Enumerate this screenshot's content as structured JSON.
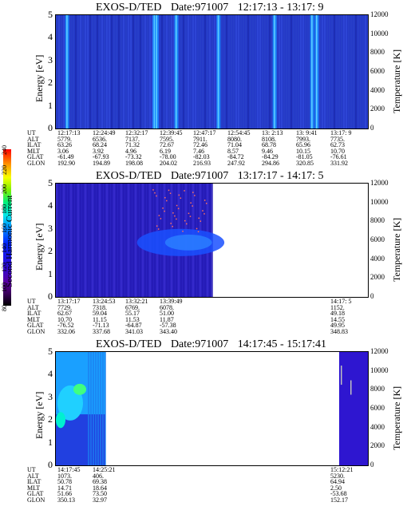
{
  "chart_data": [
    {
      "type": "heatmap",
      "title": {
        "instrument": "EXOS-D/TED",
        "date": "Date:971007",
        "range": "12:17:13 - 13:17: 9"
      },
      "ylabel": "Energy [eV]",
      "y2label": "Temperature [K]",
      "ylim": [
        0,
        5
      ],
      "y2lim": [
        0,
        12000
      ],
      "yticks": [
        "0",
        "1",
        "2",
        "3",
        "4",
        "5"
      ],
      "y2ticks": [
        "0",
        "2000",
        "4000",
        "6000",
        "8000",
        "10000",
        "12000"
      ],
      "background_color": "#2438c8",
      "band_color": "#1a8cff",
      "bright_bands": [
        0.035,
        0.315,
        0.322,
        0.385,
        0.52,
        0.7,
        0.82,
        0.835
      ],
      "orbit_labels": [
        "UT",
        "ALT",
        "ILAT",
        "MLT",
        "GLAT",
        "GLON"
      ],
      "orbit_columns": [
        [
          "12:17:13",
          "5779.",
          "63.26",
          "3.06",
          "-61.49",
          "192.90"
        ],
        [
          "12:24:49",
          "6536.",
          "68.24",
          "3.92",
          "-67.93",
          "194.89"
        ],
        [
          "12:32:17",
          "7137.",
          "71.32",
          "4.96",
          "-73.32",
          "198.08"
        ],
        [
          "12:39:45",
          "7595.",
          "72.67",
          "6.19",
          "-78.00",
          "204.02"
        ],
        [
          "12:47:17",
          "7911.",
          "72.46",
          "7.46",
          "-82.03",
          "216.93"
        ],
        [
          "12:54:45",
          "8080.",
          "71.04",
          "8.57",
          "-84.72",
          "247.92"
        ],
        [
          "13: 2:13",
          "8108.",
          "68.78",
          "9.46",
          "-84.29",
          "294.86"
        ],
        [
          "13: 9:41",
          "7993.",
          "65.96",
          "10.15",
          "-81.05",
          "320.85"
        ],
        [
          "13:17: 9",
          "7735.",
          "62.73",
          "10.70",
          "-76.61",
          "331.92"
        ]
      ]
    },
    {
      "type": "heatmap",
      "title": {
        "instrument": "EXOS-D/TED",
        "date": "Date:971007",
        "range": "13:17:17 - 14:17: 5"
      },
      "ylabel": "Energy [eV]",
      "y2label": "Temperature [K]",
      "ylim": [
        0,
        5
      ],
      "y2lim": [
        0,
        12000
      ],
      "yticks": [
        "0",
        "1",
        "2",
        "3",
        "4",
        "5"
      ],
      "y2ticks": [
        "0",
        "2000",
        "4000",
        "6000",
        "8000",
        "10000",
        "12000"
      ],
      "data_end_fraction": 0.5,
      "orbit_labels": [
        "UT",
        "ALT",
        "ILAT",
        "MLT",
        "GLAT",
        "GLON"
      ],
      "orbit_columns": [
        [
          "13:17:17",
          "7729.",
          "62.67",
          "10.70",
          "-76.52",
          "332.06"
        ],
        [
          "13:24:53",
          "7318.",
          "59.04",
          "11.15",
          "-71.13",
          "337.68"
        ],
        [
          "13:32:21",
          "6769.",
          "55.17",
          "11.53",
          "-64.87",
          "341.03"
        ],
        [
          "13:39:49",
          "6078.",
          "51.00",
          "11.87",
          "-57.38",
          "343.40"
        ],
        [
          "14:17: 5",
          "1152.",
          "49.18",
          "14.55",
          "49.95",
          "348.83"
        ]
      ],
      "colorbar": {
        "label": "Second Harmonic Current",
        "ticks": [
          "80",
          "100",
          "120",
          "140",
          "160",
          "180",
          "200",
          "220",
          "240"
        ]
      }
    },
    {
      "type": "heatmap",
      "title": {
        "instrument": "EXOS-D/TED",
        "date": "Date:971007",
        "range": "14:17:45 - 15:17:41"
      },
      "ylabel": "Energy [eV]",
      "y2label": "Temperature [K]",
      "ylim": [
        0,
        5
      ],
      "y2lim": [
        0,
        12000
      ],
      "yticks": [
        "0",
        "1",
        "2",
        "3",
        "4",
        "5"
      ],
      "y2ticks": [
        "0",
        "2000",
        "4000",
        "6000",
        "8000",
        "10000",
        "12000"
      ],
      "orbit_labels": [
        "UT",
        "ALT",
        "ILAT",
        "MLT",
        "GLAT",
        "GLON"
      ],
      "orbit_columns": [
        [
          "14:17:45",
          "1073.",
          "50.78",
          "14.71",
          "51.66",
          "350.13"
        ],
        [
          "14:25:21",
          "406.",
          "69.38",
          "18.64",
          "73.50",
          "32.97"
        ],
        [
          "15:12:21",
          "5230.",
          "64.94",
          "2.50",
          "-53.68",
          "152.17"
        ]
      ]
    }
  ]
}
